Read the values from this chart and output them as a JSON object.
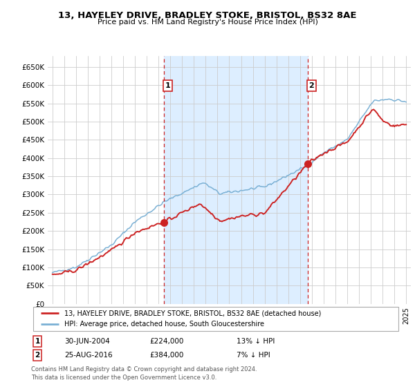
{
  "title": "13, HAYELEY DRIVE, BRADLEY STOKE, BRISTOL, BS32 8AE",
  "subtitle": "Price paid vs. HM Land Registry's House Price Index (HPI)",
  "ylim": [
    0,
    680000
  ],
  "yticks": [
    0,
    50000,
    100000,
    150000,
    200000,
    250000,
    300000,
    350000,
    400000,
    450000,
    500000,
    550000,
    600000,
    650000
  ],
  "ytick_labels": [
    "£0",
    "£50K",
    "£100K",
    "£150K",
    "£200K",
    "£250K",
    "£300K",
    "£350K",
    "£400K",
    "£450K",
    "£500K",
    "£550K",
    "£600K",
    "£650K"
  ],
  "sale1_date": "30-JUN-2004",
  "sale1_price": 224000,
  "sale1_price_str": "£224,000",
  "sale1_pct": "13% ↓ HPI",
  "sale1_year": 2004.46,
  "sale2_date": "25-AUG-2016",
  "sale2_price": 384000,
  "sale2_price_str": "£384,000",
  "sale2_pct": "7% ↓ HPI",
  "sale2_year": 2016.64,
  "legend_line1": "13, HAYELEY DRIVE, BRADLEY STOKE, BRISTOL, BS32 8AE (detached house)",
  "legend_line2": "HPI: Average price, detached house, South Gloucestershire",
  "footnote1": "Contains HM Land Registry data © Crown copyright and database right 2024.",
  "footnote2": "This data is licensed under the Open Government Licence v3.0.",
  "line_color_red": "#cc2222",
  "line_color_blue": "#7ab0d4",
  "vline_color": "#cc2222",
  "bg_color": "#ffffff",
  "fill_color": "#ddeeff",
  "grid_color": "#cccccc",
  "xlim_left": 1994.6,
  "xlim_right": 2025.4
}
